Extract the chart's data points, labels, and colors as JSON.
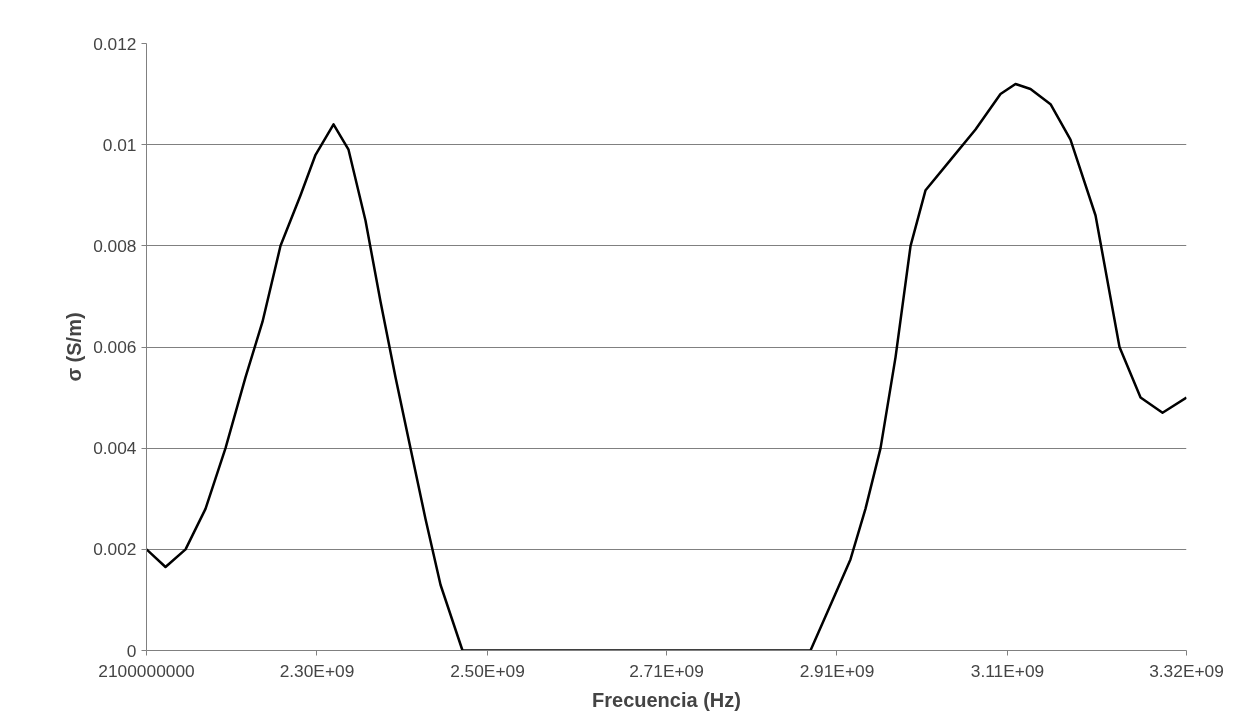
{
  "chart_data": {
    "type": "line",
    "xlabel": "Frecuencia (Hz)",
    "ylabel": "σ (S/m)",
    "x": [
      2100000000,
      2122300000,
      2145800000,
      2169200000,
      2192700000,
      2216100000,
      2236100000,
      2257200000,
      2280700000,
      2298300000,
      2319400000,
      2337000000,
      2356900000,
      2374500000,
      2392100000,
      2409700000,
      2427300000,
      2444900000,
      2470700000,
      2878900000,
      2902400000,
      2925800000,
      2943400000,
      2961100000,
      2978700000,
      2996300000,
      3013900000,
      3043200000,
      3072500000,
      3101800000,
      3119400000,
      3137000000,
      3160500000,
      3183900000,
      3213300000,
      3241400000,
      3266100000,
      3291900000,
      3320000000
    ],
    "series": [
      {
        "color": "#000000",
        "values": [
          0.002,
          0.00165,
          0.002,
          0.0028,
          0.004,
          0.0054,
          0.0065,
          0.008,
          0.009,
          0.0098,
          0.0104,
          0.0099,
          0.0085,
          0.0069,
          0.0054,
          0.004,
          0.0026,
          0.0013,
          0,
          0,
          0.0009,
          0.0018,
          0.0028,
          0.004,
          0.0058,
          0.008,
          0.0091,
          0.0097,
          0.0103,
          0.011,
          0.0112,
          0.0111,
          0.0108,
          0.0101,
          0.0086,
          0.006,
          0.005,
          0.0047,
          0.005
        ]
      }
    ],
    "xlim": [
      2100000000,
      3320000000
    ],
    "xticks": [
      2100000000,
      {
        "value": 2300000000,
        "label": "2.30E+09"
      },
      {
        "value": 2500000000,
        "label": "2.50E+09"
      },
      {
        "value": 2710000000,
        "label": "2.71E+09"
      },
      {
        "value": 2910000000,
        "label": "2.91E+09"
      },
      {
        "value": 3110000000,
        "label": "3.11E+09"
      },
      {
        "value": 3320000000,
        "label": "3.32E+09"
      }
    ],
    "ylim": [
      0,
      0.012
    ],
    "yticks": [
      0,
      0.002,
      0.004,
      0.006,
      0.008,
      0.01,
      0.012
    ],
    "grid": "y",
    "marker": "none",
    "line_style": "solid"
  }
}
